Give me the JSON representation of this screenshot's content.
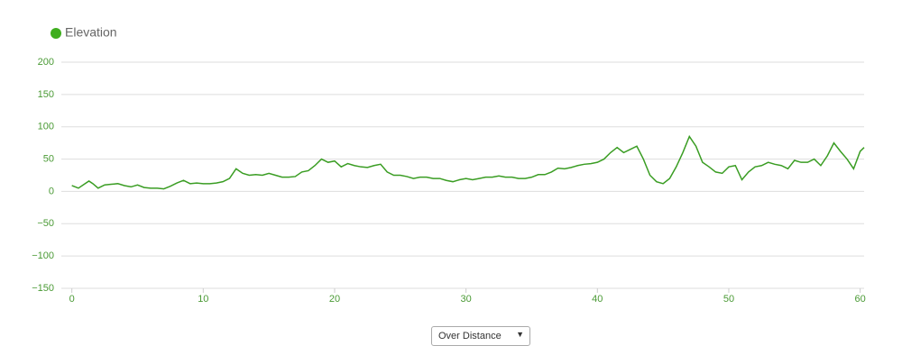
{
  "chart_data": {
    "type": "line",
    "series": [
      {
        "name": "Elevation",
        "color": "#3a9d23",
        "x": [
          0,
          0.5,
          1,
          1.3,
          1.6,
          2,
          2.5,
          3,
          3.5,
          4,
          4.5,
          5,
          5.5,
          6,
          6.5,
          7,
          7.5,
          8,
          8.5,
          9,
          9.5,
          10,
          10.5,
          11,
          11.5,
          12,
          12.5,
          13,
          13.5,
          14,
          14.5,
          15,
          15.5,
          16,
          16.5,
          17,
          17.5,
          18,
          18.5,
          19,
          19.5,
          20,
          20.5,
          21,
          21.5,
          22,
          22.5,
          23,
          23.5,
          24,
          24.5,
          25,
          25.5,
          26,
          26.5,
          27,
          27.5,
          28,
          28.5,
          29,
          29.5,
          30,
          30.5,
          31,
          31.5,
          32,
          32.5,
          33,
          33.5,
          34,
          34.5,
          35,
          35.5,
          36,
          36.5,
          37,
          37.5,
          38,
          38.5,
          39,
          39.5,
          40,
          40.5,
          41,
          41.5,
          42,
          42.5,
          43,
          43.5,
          44,
          44.5,
          45,
          45.5,
          46,
          46.5,
          47,
          47.5,
          48,
          48.5,
          49,
          49.5,
          50,
          50.5,
          51,
          51.5,
          52,
          52.5,
          53,
          53.5,
          54,
          54.5,
          55,
          55.5,
          56,
          56.5,
          57,
          57.5,
          58,
          58.5,
          59,
          59.5,
          60,
          60.3
        ],
        "values": [
          9,
          5,
          12,
          16,
          12,
          5,
          10,
          11,
          12,
          9,
          7,
          10,
          6,
          5,
          5,
          4,
          8,
          13,
          17,
          12,
          13,
          12,
          12,
          13,
          15,
          20,
          35,
          28,
          25,
          26,
          25,
          28,
          25,
          22,
          22,
          23,
          30,
          32,
          40,
          50,
          45,
          47,
          38,
          43,
          40,
          38,
          37,
          40,
          42,
          30,
          25,
          25,
          23,
          20,
          22,
          22,
          20,
          20,
          17,
          15,
          18,
          20,
          18,
          20,
          22,
          22,
          24,
          22,
          22,
          20,
          20,
          22,
          26,
          26,
          30,
          36,
          35,
          37,
          40,
          42,
          43,
          45,
          50,
          60,
          68,
          60,
          65,
          70,
          50,
          25,
          15,
          12,
          20,
          38,
          60,
          85,
          70,
          45,
          38,
          30,
          28,
          38,
          40,
          18,
          30,
          38,
          40,
          45,
          42,
          40,
          35,
          48,
          45,
          45,
          50,
          40,
          55,
          75,
          62,
          50,
          35,
          62,
          68
        ]
      }
    ],
    "xlim": [
      -0.8,
      60.3
    ],
    "xticks": [
      0,
      10,
      20,
      30,
      40,
      50,
      60
    ],
    "ylim": [
      -150,
      200
    ],
    "yticks": [
      {
        "value": -150,
        "label": "−150"
      },
      {
        "value": -100,
        "label": "−100"
      },
      {
        "value": -50,
        "label": "−50"
      },
      0,
      50,
      100,
      150,
      200
    ],
    "grid": true
  },
  "control": {
    "label": "Over Distance"
  }
}
